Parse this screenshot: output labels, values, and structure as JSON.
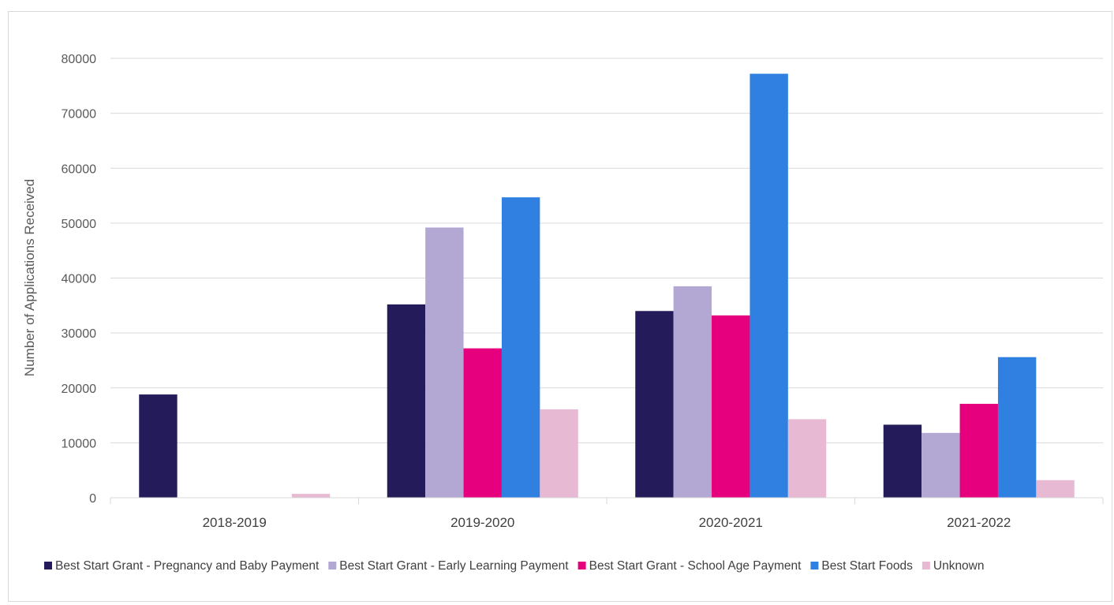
{
  "chart_data": {
    "type": "bar",
    "title": "",
    "xlabel": "",
    "ylabel": "Number  of Applications Received",
    "ylim": [
      0,
      80000
    ],
    "yticks": [
      0,
      10000,
      20000,
      30000,
      40000,
      50000,
      60000,
      70000,
      80000
    ],
    "grid": true,
    "legend_position": "bottom",
    "categories": [
      "2018-2019",
      "2019-2020",
      "2020-2021",
      "2021-2022"
    ],
    "series": [
      {
        "name": "Best Start Grant - Pregnancy and Baby Payment",
        "color": "#231b5a",
        "values": [
          18800,
          35200,
          34000,
          13300
        ]
      },
      {
        "name": "Best Start Grant - Early Learning Payment",
        "color": "#b3a8d4",
        "values": [
          0,
          49200,
          38500,
          11800
        ]
      },
      {
        "name": "Best Start Grant - School Age Payment",
        "color": "#e6007e",
        "values": [
          0,
          27200,
          33200,
          17100
        ]
      },
      {
        "name": "Best Start Foods",
        "color": "#2f80e0",
        "values": [
          0,
          54700,
          77200,
          25600
        ]
      },
      {
        "name": "Unknown",
        "color": "#e8b9d3",
        "values": [
          700,
          16100,
          14300,
          3200
        ]
      }
    ]
  }
}
